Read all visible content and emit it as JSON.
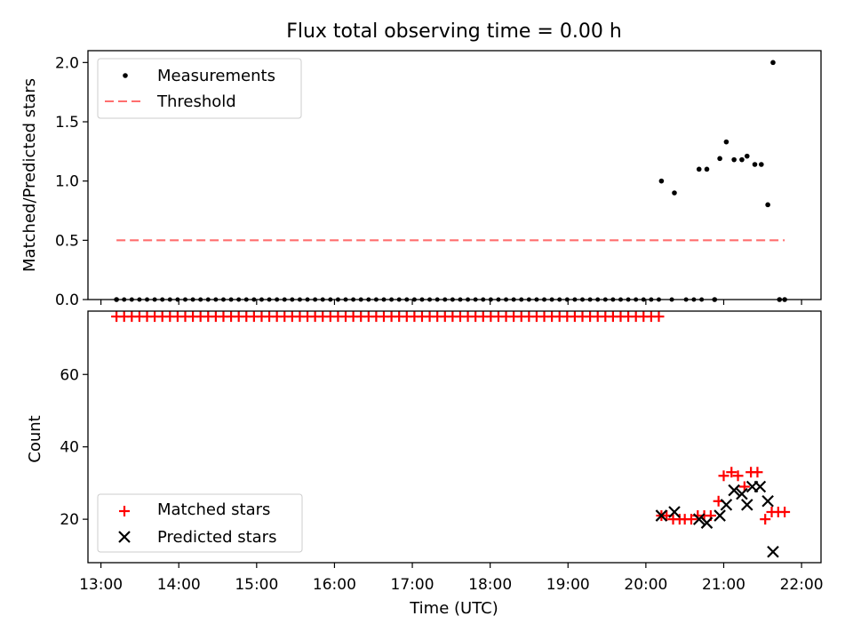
{
  "chart_data": [
    {
      "type": "scatter",
      "title": "Flux total observing time = 0.00 h",
      "xlabel": "",
      "ylabel": "Matched/Predicted stars",
      "ylim": [
        0,
        2.1
      ],
      "yticks": [
        "0.0",
        "0.5",
        "1.0",
        "1.5",
        "2.0"
      ],
      "legend_position": "upper-left",
      "series": [
        {
          "name": "Measurements",
          "marker": "dot",
          "color": "#000000",
          "points": [
            [
              "13:12",
              0.0
            ],
            [
              "20:12",
              1.0
            ],
            [
              "20:22",
              0.9
            ],
            [
              "20:41",
              1.1
            ],
            [
              "20:47",
              1.1
            ],
            [
              "20:53",
              0.0
            ],
            [
              "20:57",
              1.19
            ],
            [
              "21:02",
              1.33
            ],
            [
              "21:08",
              1.18
            ],
            [
              "21:14",
              1.18
            ],
            [
              "21:18",
              1.21
            ],
            [
              "21:24",
              1.14
            ],
            [
              "21:29",
              1.14
            ],
            [
              "21:34",
              0.8
            ],
            [
              "21:38",
              2.0
            ],
            [
              "21:43",
              0.0
            ],
            [
              "21:47",
              0.0
            ]
          ],
          "zero_series": {
            "start": "13:12",
            "end": "20:10",
            "count": 72,
            "value": 0.0,
            "extra_times": [
              "20:20",
              "20:31",
              "20:37",
              "20:43"
            ]
          }
        },
        {
          "name": "Threshold",
          "style": "dashed",
          "color": "#ff6e6e",
          "points": [
            [
              "13:12",
              0.5
            ],
            [
              "21:47",
              0.5
            ]
          ]
        }
      ]
    },
    {
      "type": "scatter",
      "title": "",
      "xlabel": "Time (UTC)",
      "ylabel": "Count",
      "ylim": [
        8,
        77.5
      ],
      "yticks": [
        "20",
        "40",
        "60"
      ],
      "xticks": [
        "13:00",
        "14:00",
        "15:00",
        "16:00",
        "17:00",
        "18:00",
        "19:00",
        "20:00",
        "21:00",
        "22:00"
      ],
      "xlim": [
        "12:50",
        "22:15"
      ],
      "legend_position": "lower-left",
      "series": [
        {
          "name": "Matched stars",
          "marker": "plus",
          "color": "#ff0000",
          "constant_run": {
            "start": "13:12",
            "end": "20:10",
            "count": 72,
            "value": 76
          },
          "points": [
            [
              "20:12",
              21
            ],
            [
              "20:16",
              21
            ],
            [
              "20:21",
              20
            ],
            [
              "20:26",
              20
            ],
            [
              "20:30",
              20
            ],
            [
              "20:35",
              20
            ],
            [
              "20:40",
              21
            ],
            [
              "20:45",
              21
            ],
            [
              "20:50",
              21
            ],
            [
              "20:56",
              25
            ],
            [
              "21:00",
              32
            ],
            [
              "21:06",
              33
            ],
            [
              "21:11",
              32
            ],
            [
              "21:16",
              29
            ],
            [
              "21:21",
              33
            ],
            [
              "21:26",
              33
            ],
            [
              "21:32",
              20
            ],
            [
              "21:37",
              22
            ],
            [
              "21:42",
              22
            ],
            [
              "21:47",
              22
            ]
          ]
        },
        {
          "name": "Predicted stars",
          "marker": "x",
          "color": "#000000",
          "points": [
            [
              "20:12",
              21
            ],
            [
              "20:22",
              22
            ],
            [
              "20:41",
              20
            ],
            [
              "20:47",
              19
            ],
            [
              "20:57",
              21
            ],
            [
              "21:02",
              24
            ],
            [
              "21:08",
              28
            ],
            [
              "21:14",
              27
            ],
            [
              "21:18",
              24
            ],
            [
              "21:22",
              29
            ],
            [
              "21:28",
              29
            ],
            [
              "21:34",
              25
            ],
            [
              "21:38",
              11
            ]
          ]
        }
      ]
    }
  ]
}
